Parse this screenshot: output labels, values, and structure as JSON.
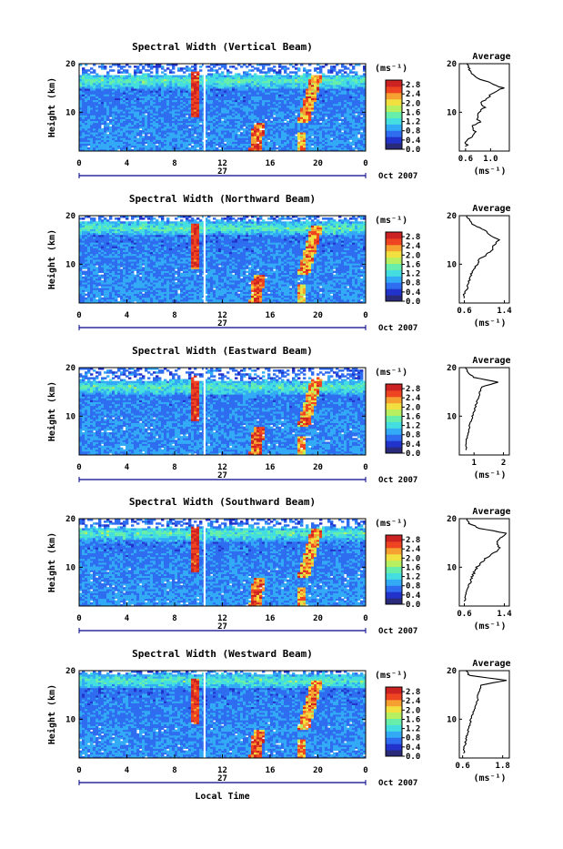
{
  "chart_data": [
    {
      "type": "heatmap",
      "title": "Spectral Width (Vertical Beam)",
      "ylabel": "Height (km)",
      "x_ticks": [
        "0",
        "4",
        "8",
        "12",
        "16",
        "20",
        "0"
      ],
      "x_range_hours": [
        0,
        24
      ],
      "y_ticks": [
        "10",
        "20"
      ],
      "ylim": [
        2,
        20
      ],
      "date_day": "27",
      "date_label": "Oct 2007",
      "colorbar": {
        "unit": "(ms⁻¹)",
        "ticks": [
          "0.0",
          "0.4",
          "0.8",
          "1.2",
          "1.6",
          "2.0",
          "2.4",
          "2.8"
        ],
        "range": [
          0,
          3.0
        ]
      },
      "average": {
        "title": "Average",
        "unit": "(ms⁻¹)",
        "x_ticks": [
          "0.6",
          "1.0"
        ],
        "xlim": [
          0.5,
          1.3
        ],
        "profile": [
          [
            3,
            0.62
          ],
          [
            4,
            0.6
          ],
          [
            5,
            0.7
          ],
          [
            6,
            0.75
          ],
          [
            7,
            0.7
          ],
          [
            8,
            0.82
          ],
          [
            9,
            0.78
          ],
          [
            10,
            0.8
          ],
          [
            11,
            0.9
          ],
          [
            12,
            0.85
          ],
          [
            13,
            0.95
          ],
          [
            14,
            1.05
          ],
          [
            15,
            1.2
          ],
          [
            16,
            1.0
          ],
          [
            17,
            0.8
          ],
          [
            18,
            0.7
          ],
          [
            19,
            0.65
          ],
          [
            20,
            0.62
          ]
        ]
      }
    },
    {
      "type": "heatmap",
      "title": "Spectral Width (Northward Beam)",
      "ylabel": "Height (km)",
      "x_ticks": [
        "0",
        "4",
        "8",
        "12",
        "16",
        "20",
        "0"
      ],
      "x_range_hours": [
        0,
        24
      ],
      "y_ticks": [
        "10",
        "20"
      ],
      "ylim": [
        2,
        20
      ],
      "date_day": "27",
      "date_label": "Oct 2007",
      "colorbar": {
        "unit": "(ms⁻¹)",
        "ticks": [
          "0.0",
          "0.4",
          "0.8",
          "1.2",
          "1.6",
          "2.0",
          "2.4",
          "2.8"
        ],
        "range": [
          0,
          3.0
        ]
      },
      "average": {
        "title": "Average",
        "unit": "(ms⁻¹)",
        "x_ticks": [
          "0.6",
          "1.4"
        ],
        "xlim": [
          0.5,
          1.5
        ],
        "profile": [
          [
            3,
            0.62
          ],
          [
            4,
            0.6
          ],
          [
            5,
            0.68
          ],
          [
            6,
            0.66
          ],
          [
            7,
            0.72
          ],
          [
            8,
            0.75
          ],
          [
            9,
            0.8
          ],
          [
            10,
            0.85
          ],
          [
            11,
            0.9
          ],
          [
            12,
            1.05
          ],
          [
            13,
            1.15
          ],
          [
            14,
            1.2
          ],
          [
            15,
            1.3
          ],
          [
            16,
            1.1
          ],
          [
            17,
            1.0
          ],
          [
            18,
            0.8
          ],
          [
            19,
            0.7
          ],
          [
            20,
            0.65
          ]
        ]
      }
    },
    {
      "type": "heatmap",
      "title": "Spectral Width (Eastward Beam)",
      "ylabel": "Height (km)",
      "x_ticks": [
        "0",
        "4",
        "8",
        "12",
        "16",
        "20",
        "0"
      ],
      "x_range_hours": [
        0,
        24
      ],
      "y_ticks": [
        "10",
        "20"
      ],
      "ylim": [
        2,
        20
      ],
      "date_day": "27",
      "date_label": "Oct 2007",
      "colorbar": {
        "unit": "(ms⁻¹)",
        "ticks": [
          "0.0",
          "0.4",
          "0.8",
          "1.2",
          "1.6",
          "2.0",
          "2.4",
          "2.8"
        ],
        "range": [
          0,
          3.0
        ]
      },
      "average": {
        "title": "Average",
        "unit": "(ms⁻¹)",
        "x_ticks": [
          "1",
          "2"
        ],
        "xlim": [
          0.5,
          2.2
        ],
        "profile": [
          [
            3,
            0.75
          ],
          [
            4,
            0.7
          ],
          [
            5,
            0.72
          ],
          [
            6,
            0.8
          ],
          [
            7,
            0.82
          ],
          [
            8,
            0.85
          ],
          [
            9,
            0.9
          ],
          [
            10,
            0.95
          ],
          [
            11,
            1.0
          ],
          [
            12,
            1.05
          ],
          [
            13,
            1.1
          ],
          [
            14,
            1.15
          ],
          [
            15,
            1.2
          ],
          [
            16,
            1.25
          ],
          [
            17,
            1.8
          ],
          [
            18,
            1.0
          ],
          [
            19,
            0.8
          ],
          [
            20,
            0.7
          ]
        ]
      }
    },
    {
      "type": "heatmap",
      "title": "Spectral Width (Southward Beam)",
      "ylabel": "Height (km)",
      "x_ticks": [
        "0",
        "4",
        "8",
        "12",
        "16",
        "20",
        "0"
      ],
      "x_range_hours": [
        0,
        24
      ],
      "y_ticks": [
        "10",
        "20"
      ],
      "ylim": [
        2,
        20
      ],
      "date_day": "27",
      "date_label": "Oct 2007",
      "colorbar": {
        "unit": "(ms⁻¹)",
        "ticks": [
          "0.0",
          "0.4",
          "0.8",
          "1.2",
          "1.6",
          "2.0",
          "2.4",
          "2.8"
        ],
        "range": [
          0,
          3.0
        ]
      },
      "average": {
        "title": "Average",
        "unit": "(ms⁻¹)",
        "x_ticks": [
          "0.6",
          "1.4"
        ],
        "xlim": [
          0.5,
          1.5
        ],
        "profile": [
          [
            3,
            0.62
          ],
          [
            4,
            0.6
          ],
          [
            5,
            0.65
          ],
          [
            6,
            0.7
          ],
          [
            7,
            0.72
          ],
          [
            8,
            0.75
          ],
          [
            9,
            0.8
          ],
          [
            10,
            0.85
          ],
          [
            11,
            0.95
          ],
          [
            12,
            1.05
          ],
          [
            13,
            1.2
          ],
          [
            14,
            1.3
          ],
          [
            15,
            1.25
          ],
          [
            16,
            1.3
          ],
          [
            17,
            1.45
          ],
          [
            18,
            0.9
          ],
          [
            19,
            0.7
          ],
          [
            20,
            0.65
          ]
        ]
      }
    },
    {
      "type": "heatmap",
      "title": "Spectral Width (Westward Beam)",
      "ylabel": "Height (km)",
      "xlabel": "Local Time",
      "x_ticks": [
        "0",
        "4",
        "8",
        "12",
        "16",
        "20",
        "0"
      ],
      "x_range_hours": [
        0,
        24
      ],
      "y_ticks": [
        "10",
        "20"
      ],
      "ylim": [
        2,
        20
      ],
      "date_day": "27",
      "date_label": "Oct 2007",
      "colorbar": {
        "unit": "(ms⁻¹)",
        "ticks": [
          "0.0",
          "0.4",
          "0.8",
          "1.2",
          "1.6",
          "2.0",
          "2.4",
          "2.8"
        ],
        "range": [
          0,
          3.0
        ]
      },
      "average": {
        "title": "Average",
        "unit": "(ms⁻¹)",
        "x_ticks": [
          "0.6",
          "1.8"
        ],
        "xlim": [
          0.5,
          2.0
        ],
        "profile": [
          [
            3,
            0.65
          ],
          [
            4,
            0.62
          ],
          [
            5,
            0.68
          ],
          [
            6,
            0.7
          ],
          [
            7,
            0.75
          ],
          [
            8,
            0.78
          ],
          [
            9,
            0.82
          ],
          [
            10,
            0.85
          ],
          [
            11,
            0.9
          ],
          [
            12,
            0.95
          ],
          [
            13,
            1.0
          ],
          [
            14,
            1.05
          ],
          [
            15,
            1.05
          ],
          [
            16,
            1.1
          ],
          [
            17,
            1.15
          ],
          [
            18,
            1.9
          ],
          [
            19,
            0.8
          ],
          [
            20,
            0.7
          ]
        ]
      }
    }
  ],
  "colors": {
    "colormap": [
      "#2a2a7a",
      "#2233cc",
      "#2f6df0",
      "#33aaf5",
      "#44dde0",
      "#66eeaa",
      "#b6f060",
      "#f2e040",
      "#f5a030",
      "#ee4422",
      "#cc2222"
    ],
    "axis": "#000000",
    "date_axis": "#000088"
  }
}
